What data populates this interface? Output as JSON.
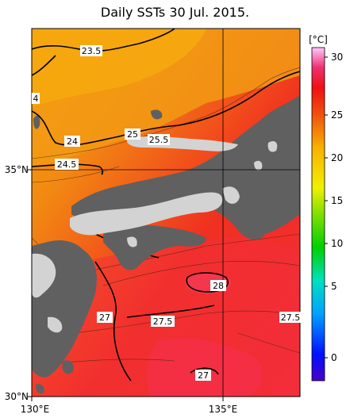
{
  "title": "Daily SSTs 30 Jul. 2015.",
  "axes": {
    "lat_labels": [
      "35°N",
      "30°N"
    ],
    "lon_labels": [
      "130°E",
      "135°E"
    ]
  },
  "contour_labels": [
    "23.5",
    "4",
    "24",
    "24.5",
    "25",
    "25.5",
    "28",
    "27",
    "27.5",
    "27.5",
    "27"
  ],
  "colorbar": {
    "unit": "[°C]",
    "ticks": [
      "30",
      "25",
      "20",
      "15",
      "10",
      "5",
      "0"
    ]
  },
  "colors": {
    "land": "#606060",
    "missing": "#d3d3d3",
    "warm_orange": "#f08a14",
    "hot_red": "#f02a1c"
  }
}
